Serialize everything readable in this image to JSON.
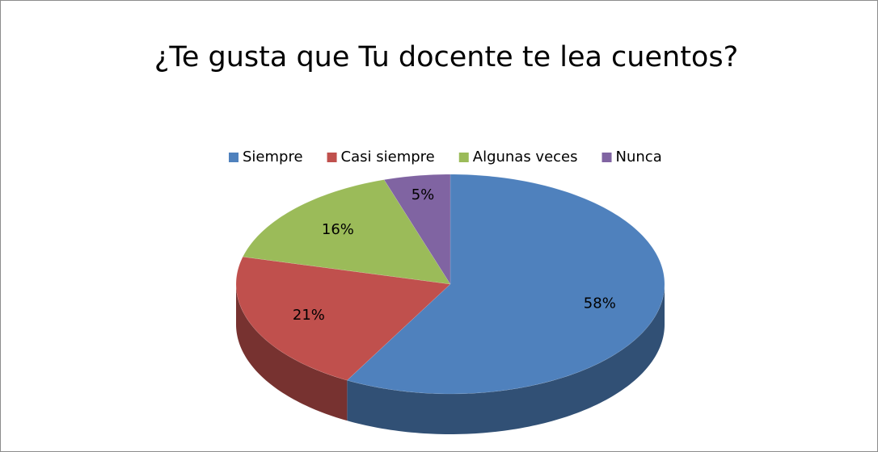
{
  "chart_data": {
    "type": "pie",
    "title": "¿Te gusta que Tu docente te lea cuentos?",
    "categories": [
      "Siempre",
      "Casi siempre",
      "Algunas veces",
      "Nunca"
    ],
    "values": [
      58,
      21,
      16,
      5
    ],
    "value_labels": [
      "58%",
      "21%",
      "16%",
      "5%"
    ],
    "colors": [
      "#4f81bd",
      "#c0504d",
      "#9bbb59",
      "#8064a2"
    ],
    "legend": "top"
  }
}
